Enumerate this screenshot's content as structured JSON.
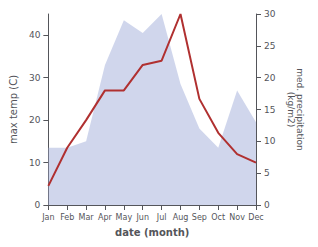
{
  "chart_data": {
    "type": "line",
    "categories": [
      "Jan",
      "Feb",
      "Mar",
      "Apr",
      "May",
      "Jun",
      "Jul",
      "Aug",
      "Sep",
      "Oct",
      "Nov",
      "Dec"
    ],
    "xlabel": "date (month)",
    "ylabel": "max temp (C)",
    "y2label": "med. precipitation\n(kg/m2)",
    "ylim": [
      0,
      45
    ],
    "yticks": [
      0,
      10,
      20,
      30,
      40
    ],
    "y2lim": [
      0,
      30
    ],
    "y2ticks": [
      0,
      5,
      10,
      15,
      20,
      25,
      30
    ],
    "grid": false,
    "series": [
      {
        "type": "area",
        "axis": "y2",
        "color": "#aab4dd",
        "values": [
          9,
          9,
          10,
          22,
          29,
          27,
          30,
          19,
          12,
          9,
          18,
          13
        ]
      },
      {
        "type": "line",
        "color": "#b03030",
        "values": [
          4.5,
          13.5,
          20,
          27,
          27,
          33,
          34,
          45,
          25,
          17,
          12,
          10
        ]
      }
    ]
  }
}
